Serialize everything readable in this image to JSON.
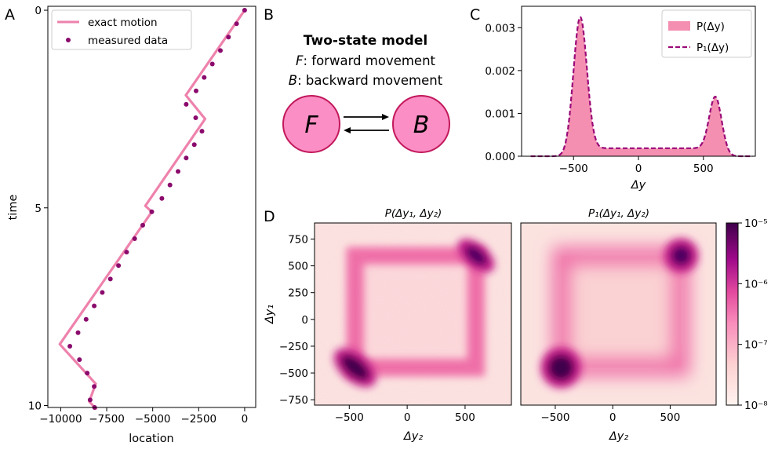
{
  "panels": {
    "A": {
      "label": "A"
    },
    "B": {
      "label": "B"
    },
    "C": {
      "label": "C"
    },
    "D": {
      "label": "D"
    }
  },
  "colors": {
    "line": "#ee82ac",
    "dot": "#8b0a6d",
    "fill": "#f48fb1",
    "dash": "#9a0a78",
    "node_fill": "#fb8ec4",
    "node_edge": "#c2185b"
  },
  "model": {
    "title": "Two-state model",
    "line_F_sym": "F",
    "line_F_rest": ": forward movement",
    "line_B_sym": "B",
    "line_B_rest": ": backward movement",
    "node_F": "F",
    "node_B": "B"
  },
  "chart_data": [
    {
      "id": "A",
      "type": "line",
      "xlabel": "location",
      "ylabel": "time",
      "xlim": [
        -10700,
        600
      ],
      "ylim": [
        10.05,
        -0.1
      ],
      "y_inverted": true,
      "x_ticks": [
        -10000,
        -7500,
        -5000,
        -2500,
        0
      ],
      "x_tick_labels": [
        "−10000",
        "−7500",
        "−5000",
        "−2500",
        "0"
      ],
      "y_ticks": [
        0,
        5,
        10
      ],
      "y_tick_labels": [
        "0",
        "5",
        "10"
      ],
      "legend": {
        "position": "top-left",
        "entries": [
          "exact motion",
          "measured data"
        ]
      },
      "series": [
        {
          "name": "exact motion",
          "style": "line",
          "points": [
            [
              0,
              0
            ],
            [
              -3200,
              2.15
            ],
            [
              -2150,
              2.75
            ],
            [
              -5400,
              4.95
            ],
            [
              -5050,
              5.1
            ],
            [
              -10050,
              8.45
            ],
            [
              -8100,
              9.45
            ],
            [
              -8450,
              9.9
            ],
            [
              -8050,
              10.1
            ]
          ]
        },
        {
          "name": "measured data",
          "style": "scatter",
          "points": [
            [
              0,
              0
            ],
            [
              -440,
              0.34
            ],
            [
              -880,
              0.68
            ],
            [
              -1320,
              1.02
            ],
            [
              -1760,
              1.36
            ],
            [
              -2200,
              1.7
            ],
            [
              -2640,
              2.04
            ],
            [
              -3180,
              2.38
            ],
            [
              -2660,
              2.72
            ],
            [
              -2320,
              3.06
            ],
            [
              -2740,
              3.4
            ],
            [
              -3180,
              3.74
            ],
            [
              -3620,
              4.08
            ],
            [
              -4060,
              4.42
            ],
            [
              -4500,
              4.76
            ],
            [
              -5050,
              5.1
            ],
            [
              -5540,
              5.44
            ],
            [
              -5980,
              5.78
            ],
            [
              -6420,
              6.12
            ],
            [
              -6860,
              6.46
            ],
            [
              -7300,
              6.8
            ],
            [
              -7740,
              7.14
            ],
            [
              -8180,
              7.48
            ],
            [
              -8620,
              7.82
            ],
            [
              -9060,
              8.16
            ],
            [
              -9500,
              8.5
            ],
            [
              -8980,
              8.84
            ],
            [
              -8560,
              9.18
            ],
            [
              -8180,
              9.52
            ],
            [
              -8400,
              9.86
            ],
            [
              -8160,
              10.05
            ]
          ]
        }
      ]
    },
    {
      "id": "C",
      "type": "area",
      "xlabel": "Δy",
      "ylabel": "",
      "xlim": [
        -900,
        900
      ],
      "ylim": [
        0,
        0.0035
      ],
      "x_ticks": [
        -500,
        0,
        500
      ],
      "x_tick_labels": [
        "−500",
        "0",
        "500"
      ],
      "y_ticks": [
        0,
        0.001,
        0.002,
        0.003
      ],
      "y_tick_labels": [
        "0.000",
        "0.001",
        "0.002",
        "0.003"
      ],
      "legend": {
        "position": "top-right",
        "entries": [
          "P(Δy)",
          "P₁(Δy)"
        ]
      },
      "components": {
        "peak1": {
          "mu": -450,
          "amp": 0.00312,
          "sigma": 52
        },
        "peak2": {
          "mu": 595,
          "amp": 0.00128,
          "sigma": 48
        },
        "plateau": {
          "level": 0.000185,
          "from": -450,
          "to": 595,
          "edge": 60
        }
      }
    },
    {
      "id": "D",
      "type": "heatmap",
      "xlabel": "Δy₂",
      "ylabel": "Δy₁",
      "xlim": [
        -800,
        900
      ],
      "ylim": [
        -800,
        900
      ],
      "x_ticks": [
        -500,
        0,
        500
      ],
      "x_tick_labels": [
        "−500",
        "0",
        "500"
      ],
      "y_ticks": [
        -750,
        -500,
        -250,
        0,
        250,
        500,
        750
      ],
      "y_tick_labels": [
        "−750",
        "−500",
        "−250",
        "0",
        "250",
        "500",
        "750"
      ],
      "panels": [
        {
          "title": "P(Δy₁, Δy₂)",
          "kind": "sampled"
        },
        {
          "title": "P₁(Δy₁, Δy₂)",
          "kind": "model"
        }
      ],
      "square_corners": [
        -450,
        595
      ],
      "colorbar": {
        "scale": "log",
        "range": [
          1e-08,
          1e-05
        ],
        "tick_labels": [
          "10⁻⁸",
          "10⁻⁷",
          "10⁻⁶",
          "10⁻⁵"
        ],
        "colors": [
          "#fff3ef",
          "#fcc5c0",
          "#f768a1",
          "#c51b8a",
          "#7a0177",
          "#3f004b"
        ]
      }
    }
  ]
}
